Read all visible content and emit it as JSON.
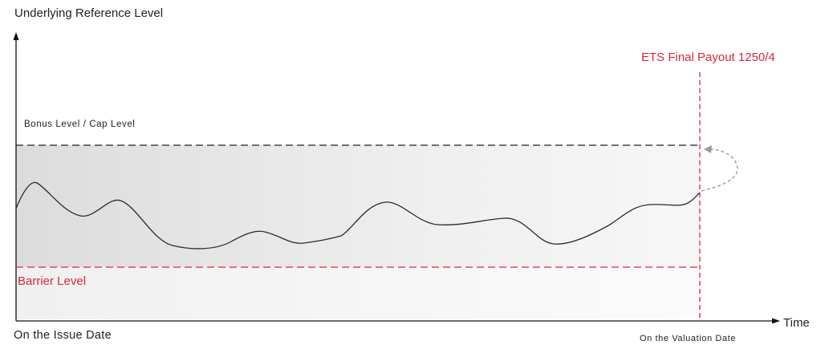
{
  "labels": {
    "y_axis": "Underlying Reference Level",
    "cap_level": "Bonus Level / Cap Level",
    "barrier_level": "Barrier Level",
    "final_payout": "ETS Final Payout 1250/4",
    "issue_date": "On the Issue Date",
    "valuation_date": "On the Valuation Date",
    "x_axis": "Time"
  },
  "colors": {
    "axis": "#111111",
    "cap_line": "#222222",
    "barrier_line": "#d9283c",
    "valuation_line": "#d9283c",
    "price_path": "#2b2b2b",
    "band_fill": "#e6e6e6",
    "payout_arrow": "#9a9a9a"
  }
}
